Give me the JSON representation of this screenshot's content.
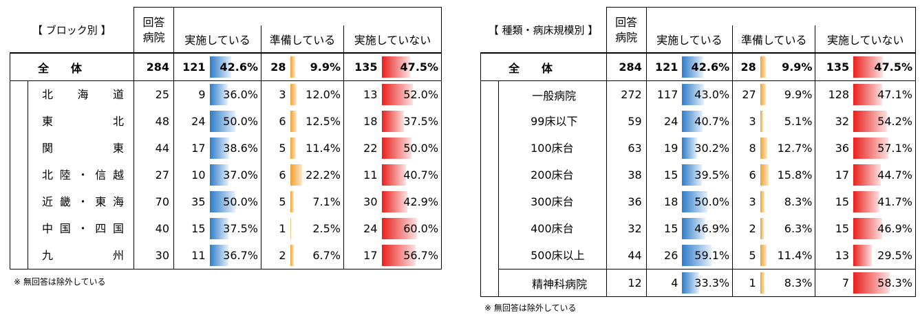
{
  "left": {
    "section_label": "【 ブロック別 】",
    "header_count": "回答\n病院",
    "col_headers": [
      "実施している",
      "準備している",
      "実施していない"
    ],
    "total": {
      "label": "全　　体",
      "n": 284,
      "impl_n": 121,
      "impl_p": 42.6,
      "prep_n": 28,
      "prep_p": 9.9,
      "not_n": 135,
      "not_p": 47.5
    },
    "rows": [
      {
        "label": "北　海　道",
        "n": 25,
        "impl_n": 9,
        "impl_p": 36.0,
        "prep_n": 3,
        "prep_p": 12.0,
        "not_n": 13,
        "not_p": 52.0
      },
      {
        "label": "東　　　北",
        "n": 48,
        "impl_n": 24,
        "impl_p": 50.0,
        "prep_n": 6,
        "prep_p": 12.5,
        "not_n": 18,
        "not_p": 37.5
      },
      {
        "label": "関　　　東",
        "n": 44,
        "impl_n": 17,
        "impl_p": 38.6,
        "prep_n": 5,
        "prep_p": 11.4,
        "not_n": 22,
        "not_p": 50.0
      },
      {
        "label": "北陸・信越",
        "n": 27,
        "impl_n": 10,
        "impl_p": 37.0,
        "prep_n": 6,
        "prep_p": 22.2,
        "not_n": 11,
        "not_p": 40.7
      },
      {
        "label": "近畿・東海",
        "n": 70,
        "impl_n": 35,
        "impl_p": 50.0,
        "prep_n": 5,
        "prep_p": 7.1,
        "not_n": 30,
        "not_p": 42.9
      },
      {
        "label": "中国・四国",
        "n": 40,
        "impl_n": 15,
        "impl_p": 37.5,
        "prep_n": 1,
        "prep_p": 2.5,
        "not_n": 24,
        "not_p": 60.0
      },
      {
        "label": "九　　　州",
        "n": 30,
        "impl_n": 11,
        "impl_p": 36.7,
        "prep_n": 2,
        "prep_p": 6.7,
        "not_n": 17,
        "not_p": 56.7
      }
    ],
    "note": "※ 無回答は除外している"
  },
  "right": {
    "section_label": "【 種類・病床規模別 】",
    "header_count": "回答\n病院",
    "col_headers": [
      "実施している",
      "準備している",
      "実施していない"
    ],
    "total": {
      "label": "全　　体",
      "n": 284,
      "impl_n": 121,
      "impl_p": 42.6,
      "prep_n": 28,
      "prep_p": 9.9,
      "not_n": 135,
      "not_p": 47.5
    },
    "rows": [
      {
        "label": "一般病院",
        "level": 1,
        "n": 272,
        "impl_n": 117,
        "impl_p": 43.0,
        "prep_n": 27,
        "prep_p": 9.9,
        "not_n": 128,
        "not_p": 47.1
      },
      {
        "label": "99床以下",
        "level": 2,
        "n": 59,
        "impl_n": 24,
        "impl_p": 40.7,
        "prep_n": 3,
        "prep_p": 5.1,
        "not_n": 32,
        "not_p": 54.2
      },
      {
        "label": "100床台",
        "level": 2,
        "n": 63,
        "impl_n": 19,
        "impl_p": 30.2,
        "prep_n": 8,
        "prep_p": 12.7,
        "not_n": 36,
        "not_p": 57.1
      },
      {
        "label": "200床台",
        "level": 2,
        "n": 38,
        "impl_n": 15,
        "impl_p": 39.5,
        "prep_n": 6,
        "prep_p": 15.8,
        "not_n": 17,
        "not_p": 44.7
      },
      {
        "label": "300床台",
        "level": 2,
        "n": 36,
        "impl_n": 18,
        "impl_p": 50.0,
        "prep_n": 3,
        "prep_p": 8.3,
        "not_n": 15,
        "not_p": 41.7
      },
      {
        "label": "400床台",
        "level": 2,
        "n": 32,
        "impl_n": 15,
        "impl_p": 46.9,
        "prep_n": 2,
        "prep_p": 6.3,
        "not_n": 15,
        "not_p": 46.9
      },
      {
        "label": "500床以上",
        "level": 2,
        "n": 44,
        "impl_n": 26,
        "impl_p": 59.1,
        "prep_n": 5,
        "prep_p": 11.4,
        "not_n": 13,
        "not_p": 29.5
      },
      {
        "label": "精神科病院",
        "level": 1,
        "n": 12,
        "impl_n": 4,
        "impl_p": 33.3,
        "prep_n": 1,
        "prep_p": 8.3,
        "not_n": 7,
        "not_p": 58.3
      }
    ],
    "note": "※ 無回答は除外している"
  },
  "chart_data": [
    {
      "type": "table",
      "title": "【 ブロック別 】",
      "columns": [
        "回答病院",
        "実施している",
        "準備している",
        "実施していない"
      ],
      "categories": [
        "全体",
        "北海道",
        "東北",
        "関東",
        "北陸・信越",
        "近畿・東海",
        "中国・四国",
        "九州"
      ],
      "series": [
        {
          "name": "回答病院",
          "values": [
            284,
            25,
            48,
            44,
            27,
            70,
            40,
            30
          ]
        },
        {
          "name": "実施している",
          "values": [
            121,
            9,
            24,
            17,
            10,
            35,
            15,
            11
          ],
          "percent": [
            42.6,
            36.0,
            50.0,
            38.6,
            37.0,
            50.0,
            37.5,
            36.7
          ]
        },
        {
          "name": "準備している",
          "values": [
            28,
            3,
            6,
            5,
            6,
            5,
            1,
            2
          ],
          "percent": [
            9.9,
            12.0,
            12.5,
            11.4,
            22.2,
            7.1,
            2.5,
            6.7
          ]
        },
        {
          "name": "実施していない",
          "values": [
            135,
            13,
            18,
            22,
            11,
            30,
            24,
            17
          ],
          "percent": [
            47.5,
            52.0,
            37.5,
            50.0,
            40.7,
            42.9,
            60.0,
            56.7
          ]
        }
      ],
      "bar_colors": {
        "実施している": "#2e7cc8",
        "準備している": "#f0a030",
        "実施していない": "#e8201c"
      }
    },
    {
      "type": "table",
      "title": "【 種類・病床規模別 】",
      "columns": [
        "回答病院",
        "実施している",
        "準備している",
        "実施していない"
      ],
      "categories": [
        "全体",
        "一般病院",
        "99床以下",
        "100床台",
        "200床台",
        "300床台",
        "400床台",
        "500床以上",
        "精神科病院"
      ],
      "series": [
        {
          "name": "回答病院",
          "values": [
            284,
            272,
            59,
            63,
            38,
            36,
            32,
            44,
            12
          ]
        },
        {
          "name": "実施している",
          "values": [
            121,
            117,
            24,
            19,
            15,
            18,
            15,
            26,
            4
          ],
          "percent": [
            42.6,
            43.0,
            40.7,
            30.2,
            39.5,
            50.0,
            46.9,
            59.1,
            33.3
          ]
        },
        {
          "name": "準備している",
          "values": [
            28,
            27,
            3,
            8,
            6,
            3,
            2,
            5,
            1
          ],
          "percent": [
            9.9,
            9.9,
            5.1,
            12.7,
            15.8,
            8.3,
            6.3,
            11.4,
            8.3
          ]
        },
        {
          "name": "実施していない",
          "values": [
            135,
            128,
            32,
            36,
            17,
            15,
            15,
            13,
            7
          ],
          "percent": [
            47.5,
            47.1,
            54.2,
            57.1,
            44.7,
            41.7,
            46.9,
            29.5,
            58.3
          ]
        }
      ],
      "bar_colors": {
        "実施している": "#2e7cc8",
        "準備している": "#f0a030",
        "実施していない": "#e8201c"
      }
    }
  ]
}
